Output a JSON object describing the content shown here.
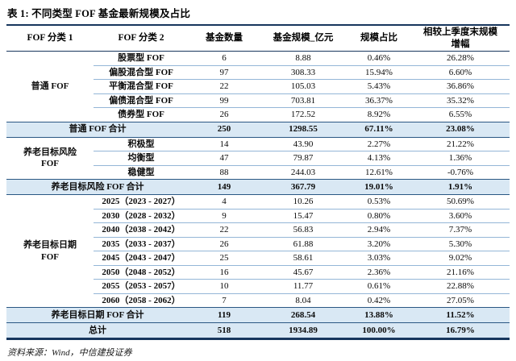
{
  "title": "表 1: 不同类型 FOF 基金最新规模及占比",
  "source_note": "资料来源：Wind，中信建投证券",
  "colors": {
    "border_dark": "#17365D",
    "border_subtotal": "#2A5783",
    "separator": "#94B6D7",
    "subtotal_bg": "#D9E8F4"
  },
  "table": {
    "headers": [
      [
        "FOF 分类 1"
      ],
      [
        "FOF 分类 2"
      ],
      [
        "基金数量"
      ],
      [
        "基金规模_亿元"
      ],
      [
        "规模占比"
      ],
      [
        "相较上季度末规模",
        "增幅"
      ]
    ],
    "groups": [
      {
        "category_lines": [
          "普通 FOF"
        ],
        "rows": [
          [
            "股票型 FOF",
            "6",
            "8.88",
            "0.46%",
            "26.28%"
          ],
          [
            "偏股混合型 FOF",
            "97",
            "308.33",
            "15.94%",
            "6.60%"
          ],
          [
            "平衡混合型 FOF",
            "22",
            "105.03",
            "5.43%",
            "36.86%"
          ],
          [
            "偏债混合型 FOF",
            "99",
            "703.81",
            "36.37%",
            "35.32%"
          ],
          [
            "债券型 FOF",
            "26",
            "172.52",
            "8.92%",
            "6.55%"
          ]
        ],
        "subtotal": {
          "label": "普通 FOF 合计",
          "values": [
            "250",
            "1298.55",
            "67.11%",
            "23.08%"
          ]
        }
      },
      {
        "category_lines": [
          "养老目标风险",
          "FOF"
        ],
        "rows": [
          [
            "积极型",
            "14",
            "43.90",
            "2.27%",
            "21.22%"
          ],
          [
            "均衡型",
            "47",
            "79.87",
            "4.13%",
            "1.36%"
          ],
          [
            "稳健型",
            "88",
            "244.03",
            "12.61%",
            "-0.76%"
          ]
        ],
        "subtotal": {
          "label": "养老目标风险 FOF 合计",
          "values": [
            "149",
            "367.79",
            "19.01%",
            "1.91%"
          ]
        }
      },
      {
        "category_lines": [
          "养老目标日期",
          "FOF"
        ],
        "rows": [
          [
            "2025（2023 - 2027）",
            "4",
            "10.26",
            "0.53%",
            "50.69%"
          ],
          [
            "2030（2028 - 2032）",
            "9",
            "15.47",
            "0.80%",
            "3.60%"
          ],
          [
            "2040（2038 - 2042）",
            "22",
            "56.83",
            "2.94%",
            "7.37%"
          ],
          [
            "2035（2033 - 2037）",
            "26",
            "61.88",
            "3.20%",
            "5.30%"
          ],
          [
            "2045（2043 - 2047）",
            "25",
            "58.61",
            "3.03%",
            "9.02%"
          ],
          [
            "2050（2048 - 2052）",
            "16",
            "45.67",
            "2.36%",
            "21.16%"
          ],
          [
            "2055（2053 - 2057）",
            "10",
            "11.77",
            "0.61%",
            "22.88%"
          ],
          [
            "2060（2058 - 2062）",
            "7",
            "8.04",
            "0.42%",
            "27.05%"
          ]
        ],
        "subtotal": {
          "label": "养老目标日期 FOF 合计",
          "values": [
            "119",
            "268.54",
            "13.88%",
            "11.52%"
          ]
        }
      }
    ],
    "total": {
      "label": "总计",
      "values": [
        "518",
        "1934.89",
        "100.00%",
        "16.79%"
      ]
    }
  }
}
